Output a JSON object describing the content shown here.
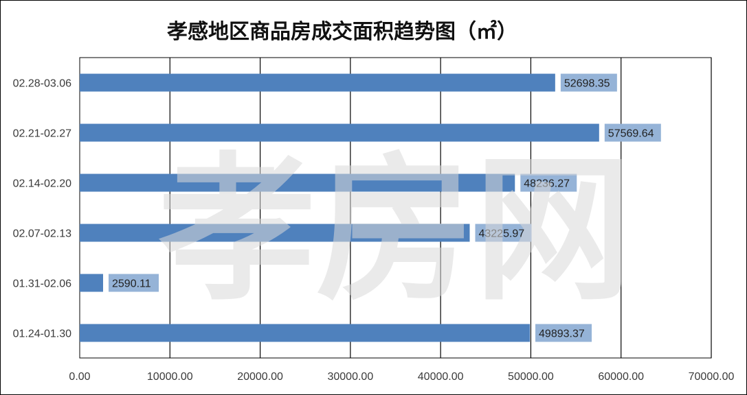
{
  "chart_data": {
    "type": "bar",
    "orientation": "horizontal",
    "title": "孝感地区商品房成交面积趋势图（㎡）",
    "categories": [
      "02.28-03.06",
      "02.21-02.27",
      "02.14-02.20",
      "02.07-02.13",
      "01.31-02.06",
      "01.24-01.30"
    ],
    "values": [
      52698.35,
      57569.64,
      48236.27,
      43225.97,
      2590.11,
      49893.37
    ],
    "value_labels": [
      "52698.35",
      "57569.64",
      "48236.27",
      "43225.97",
      "2590.11",
      "49893.37"
    ],
    "xlim": [
      0,
      70000
    ],
    "x_ticks": [
      0,
      10000,
      20000,
      30000,
      40000,
      50000,
      60000,
      70000
    ],
    "x_tick_labels": [
      "0.00",
      "10000.00",
      "20000.00",
      "30000.00",
      "40000.00",
      "50000.00",
      "60000.00",
      "70000.00"
    ],
    "grid": "vertical",
    "legend": "none",
    "bar_color": "#4f81bd",
    "label_bg_color": "#95b3d7"
  },
  "watermark": {
    "text": "孝房网"
  }
}
